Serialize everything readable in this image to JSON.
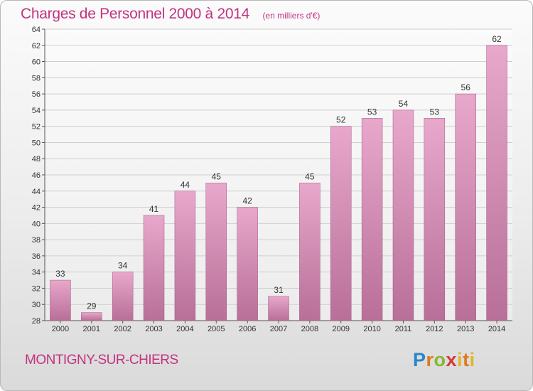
{
  "chart_data": {
    "type": "bar",
    "title": "Charges de Personnel 2000 à 2014",
    "subtitle": "(en milliers d'€)",
    "categories": [
      "2000",
      "2001",
      "2002",
      "2003",
      "2004",
      "2005",
      "2006",
      "2007",
      "2008",
      "2009",
      "2010",
      "2011",
      "2012",
      "2013",
      "2014"
    ],
    "values": [
      33,
      29,
      34,
      41,
      44,
      45,
      42,
      31,
      45,
      52,
      53,
      54,
      53,
      56,
      62
    ],
    "ylim": [
      28,
      64
    ],
    "yticks": [
      28,
      30,
      32,
      34,
      36,
      38,
      40,
      42,
      44,
      46,
      48,
      50,
      52,
      54,
      56,
      58,
      60,
      62,
      64
    ],
    "grid": true,
    "bar_color": "#d98fb8"
  },
  "footer": {
    "commune": "MONTIGNY-SUR-CHIERS",
    "logo": "Proxiti"
  },
  "colors": {
    "accent": "#c2337f",
    "bar_top": "#e8a8cb",
    "bar_bottom": "#b86f98"
  }
}
